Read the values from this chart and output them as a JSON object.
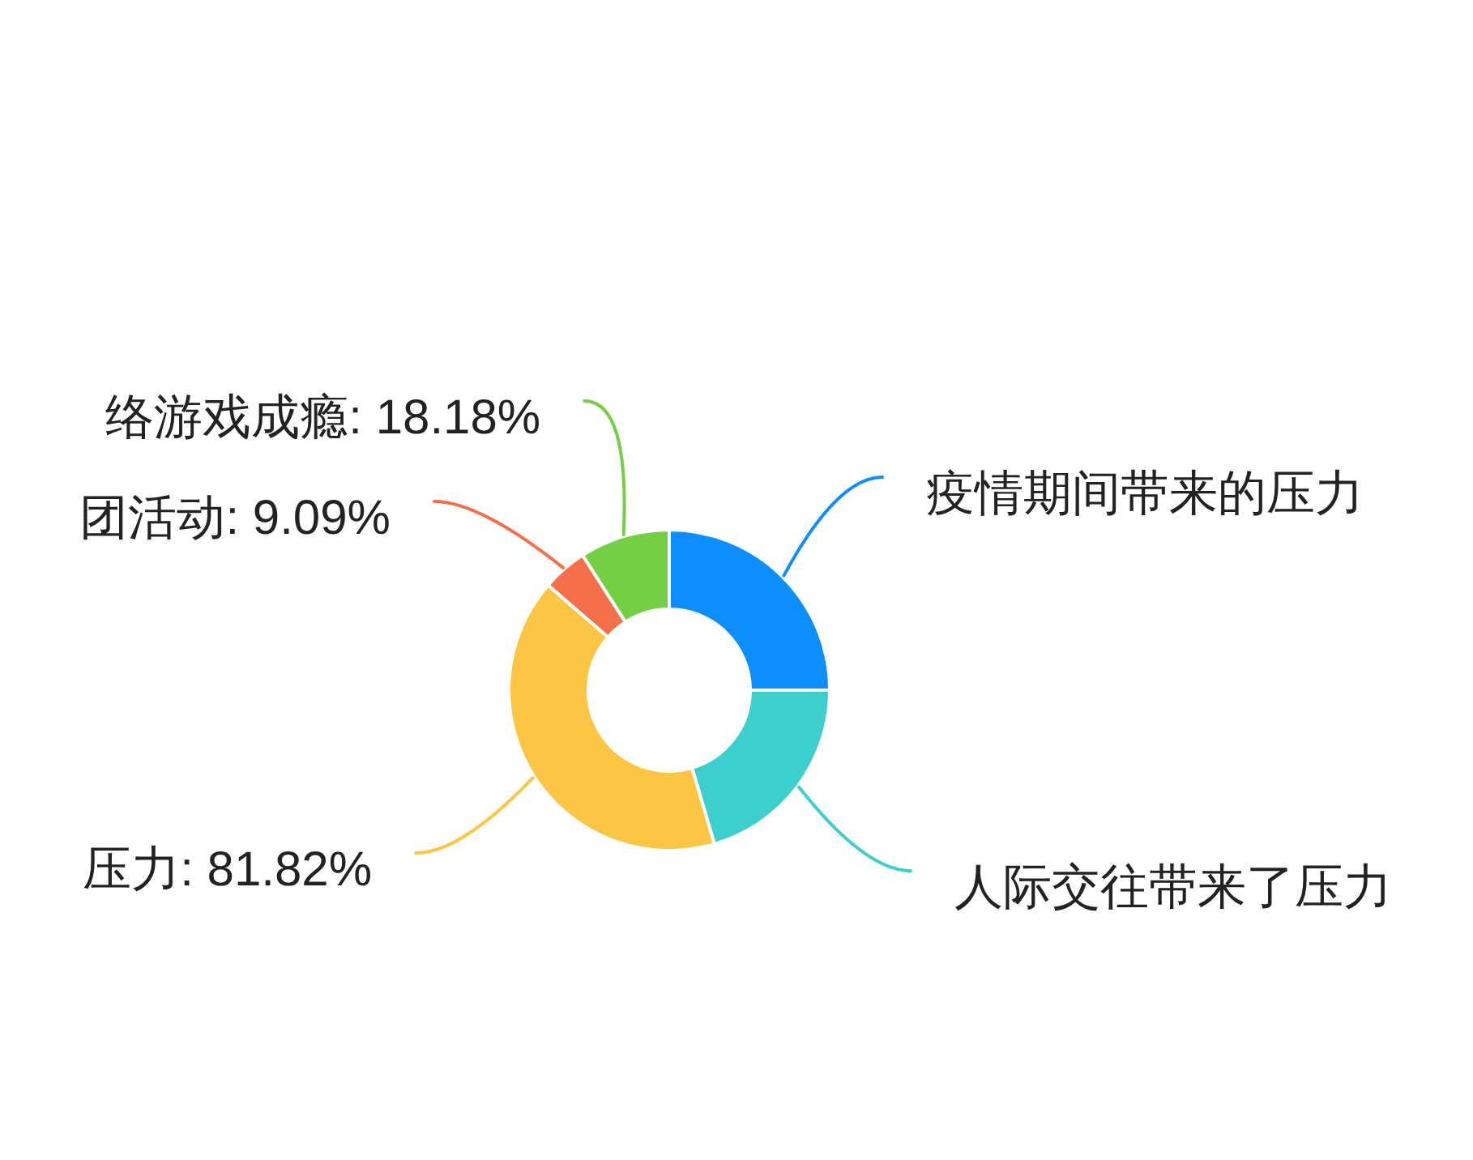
{
  "chart_data": {
    "type": "donut",
    "categories": [
      "疫情期间带来的压力",
      "人际交往带来了压力",
      "压力",
      "团活动",
      "络游戏成瘾"
    ],
    "values": [
      50,
      40.91,
      81.82,
      9.09,
      18.18
    ],
    "colors": [
      "#0c8eff",
      "#3ccfcd",
      "#fcc543",
      "#f5704a",
      "#74cf45"
    ],
    "value_labels": [
      null,
      null,
      "81.82%",
      "9.09%",
      "18.18%"
    ]
  }
}
